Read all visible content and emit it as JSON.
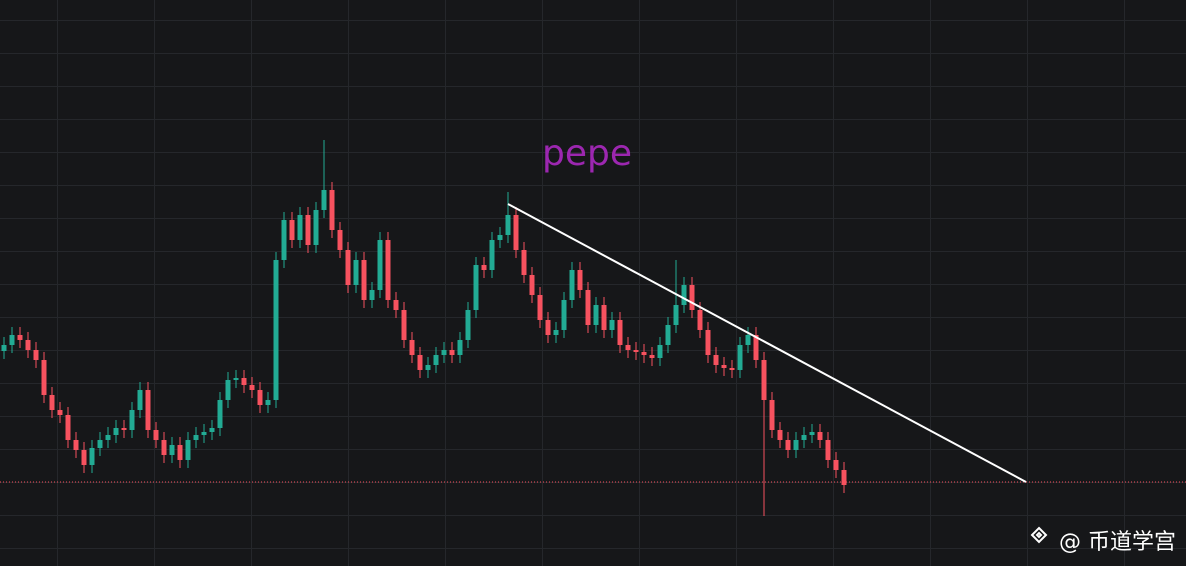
{
  "chart_data": {
    "type": "candlestick",
    "title": "pepe",
    "watermark": "@ 币道学宫",
    "ylim": [
      0,
      566
    ],
    "up_color": "#22ab94",
    "down_color": "#f7525f",
    "trendline_color": "#ffffff",
    "reference_color": "#f7525f",
    "trendline": {
      "x": [
        63,
        127.75
      ],
      "y": [
        362,
        84
      ]
    },
    "reference_line": 84,
    "open": [
      215,
      221,
      231,
      226,
      216,
      206,
      171,
      156,
      151,
      126,
      116,
      101,
      118,
      126,
      131,
      138,
      136,
      156,
      176,
      136,
      126,
      111,
      121,
      106,
      126,
      131,
      134,
      138,
      166,
      186,
      188,
      181,
      176,
      161,
      166,
      306,
      346,
      326,
      351,
      321,
      356,
      376,
      336,
      316,
      281,
      306,
      266,
      276,
      326,
      266,
      256,
      226,
      211,
      196,
      201,
      211,
      216,
      211,
      226,
      256,
      301,
      296,
      326,
      331,
      351,
      316,
      291,
      271,
      246,
      231,
      236,
      266,
      296,
      276,
      241,
      261,
      236,
      246,
      221,
      216,
      214,
      211,
      208,
      221,
      241,
      261,
      281,
      256,
      236,
      211,
      201,
      198,
      196,
      221,
      231,
      206,
      166,
      136,
      126,
      116,
      126,
      131,
      134,
      126,
      106,
      96
    ],
    "high": [
      229,
      239,
      239,
      234,
      224,
      214,
      179,
      164,
      159,
      134,
      124,
      126,
      134,
      139,
      146,
      146,
      164,
      184,
      184,
      144,
      134,
      129,
      129,
      134,
      139,
      142,
      146,
      174,
      194,
      196,
      196,
      189,
      184,
      174,
      314,
      354,
      354,
      359,
      359,
      364,
      426,
      384,
      344,
      324,
      314,
      314,
      284,
      334,
      334,
      274,
      264,
      234,
      219,
      209,
      219,
      224,
      224,
      234,
      264,
      309,
      309,
      334,
      339,
      374,
      359,
      324,
      299,
      279,
      254,
      244,
      274,
      304,
      304,
      284,
      269,
      269,
      254,
      254,
      229,
      224,
      222,
      219,
      229,
      249,
      306,
      289,
      289,
      264,
      244,
      219,
      209,
      206,
      229,
      239,
      239,
      214,
      174,
      144,
      134,
      134,
      139,
      142,
      142,
      134,
      114,
      104
    ],
    "low": [
      207,
      213,
      218,
      208,
      198,
      163,
      148,
      143,
      118,
      108,
      93,
      93,
      110,
      118,
      123,
      128,
      128,
      148,
      128,
      118,
      103,
      103,
      98,
      98,
      118,
      123,
      126,
      130,
      158,
      178,
      173,
      168,
      153,
      153,
      158,
      298,
      318,
      318,
      313,
      313,
      348,
      328,
      308,
      273,
      273,
      258,
      258,
      268,
      258,
      248,
      218,
      203,
      188,
      188,
      193,
      203,
      203,
      203,
      218,
      248,
      288,
      288,
      318,
      323,
      308,
      283,
      263,
      238,
      223,
      223,
      228,
      258,
      268,
      233,
      233,
      228,
      228,
      213,
      208,
      206,
      203,
      200,
      200,
      213,
      233,
      253,
      248,
      228,
      203,
      193,
      190,
      188,
      188,
      213,
      198,
      50,
      128,
      118,
      108,
      108,
      118,
      123,
      118,
      98,
      88,
      73
    ],
    "close": [
      221,
      231,
      226,
      216,
      206,
      171,
      156,
      151,
      126,
      116,
      101,
      118,
      126,
      131,
      138,
      136,
      156,
      176,
      136,
      126,
      111,
      121,
      106,
      126,
      131,
      134,
      138,
      166,
      186,
      188,
      181,
      176,
      161,
      166,
      306,
      346,
      326,
      351,
      321,
      356,
      376,
      336,
      316,
      281,
      306,
      266,
      276,
      326,
      266,
      256,
      226,
      211,
      196,
      201,
      211,
      216,
      211,
      226,
      256,
      301,
      296,
      326,
      331,
      351,
      316,
      291,
      271,
      246,
      231,
      236,
      266,
      296,
      276,
      241,
      261,
      236,
      246,
      221,
      216,
      214,
      211,
      208,
      221,
      241,
      261,
      281,
      256,
      236,
      211,
      201,
      198,
      196,
      221,
      231,
      206,
      166,
      136,
      126,
      116,
      126,
      131,
      134,
      126,
      106,
      96,
      81
    ]
  }
}
